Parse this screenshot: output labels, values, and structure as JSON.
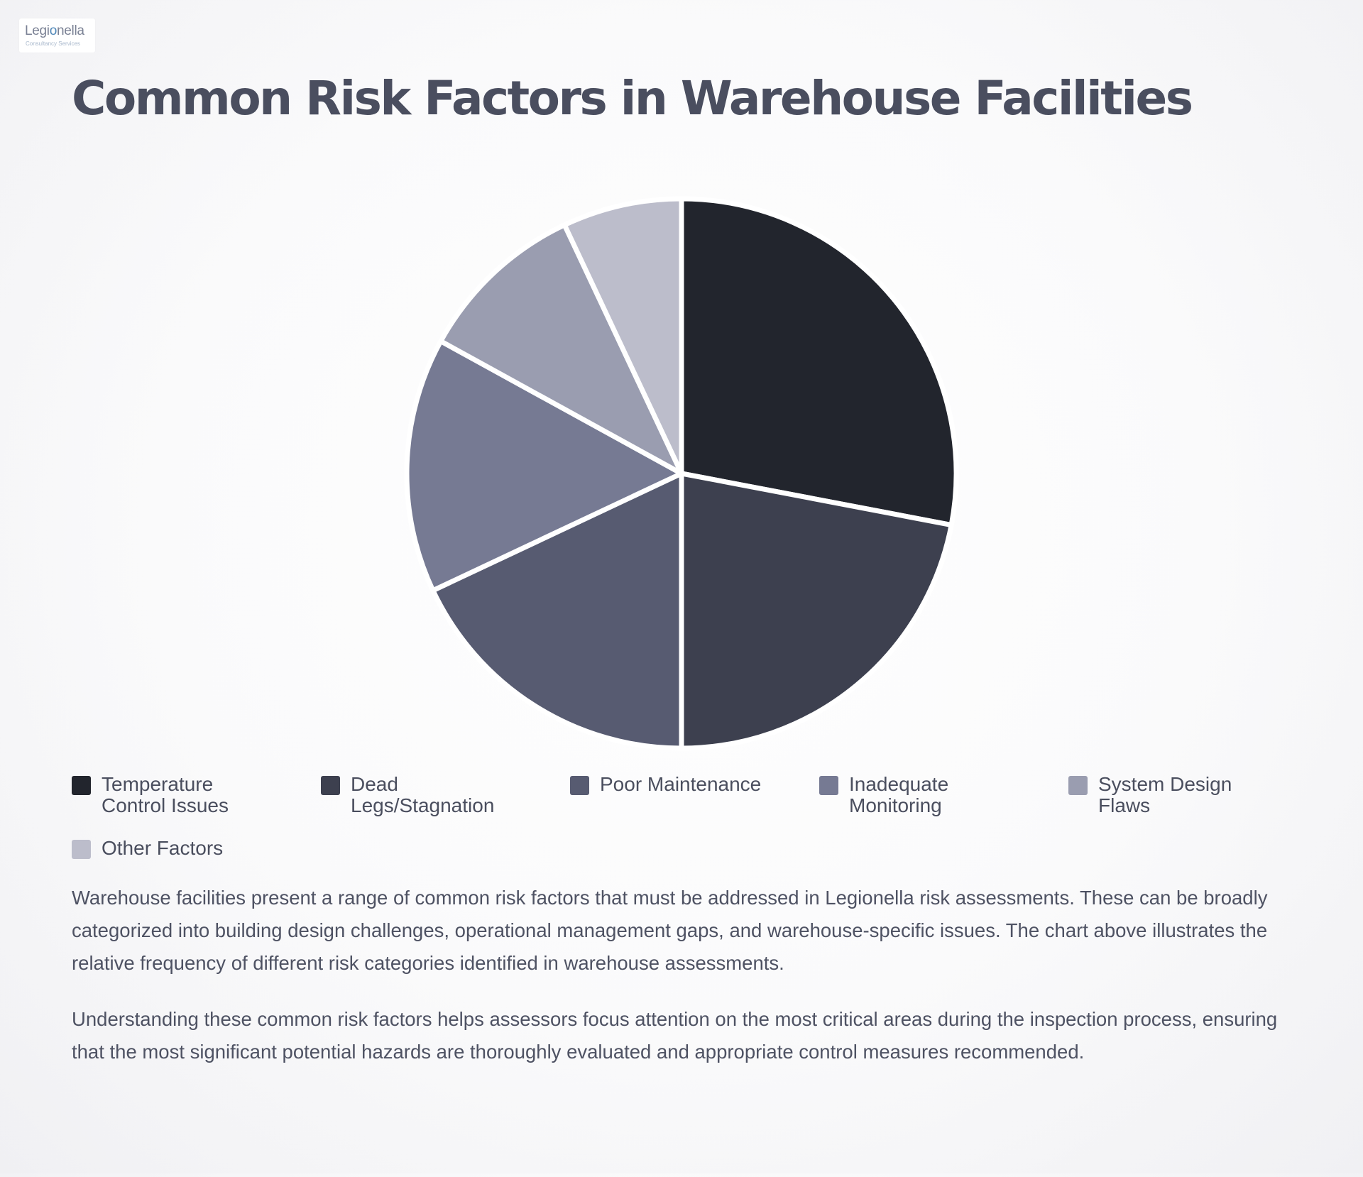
{
  "logo": {
    "word_start": "Legi",
    "word_o": "o",
    "word_end": "nella",
    "tagline": "Consultancy Services",
    "colors": {
      "word": "#7a8194",
      "accent": "#4f87b8",
      "tagline": "#a9b8cc"
    }
  },
  "title": "Common Risk Factors in Warehouse Facilities",
  "chart_data": {
    "type": "pie",
    "title": "Common Risk Factors in Warehouse Facilities",
    "unit": "relative frequency (%)",
    "start_angle": "12 o'clock",
    "direction": "clockwise",
    "legend_position": "bottom",
    "slices": [
      {
        "label": "Temperature Control Issues",
        "value": 28,
        "color": "#22252d"
      },
      {
        "label": "Dead Legs/Stagnation",
        "value": 22,
        "color": "#3d404f"
      },
      {
        "label": "Poor Maintenance",
        "value": 18,
        "color": "#575b71"
      },
      {
        "label": "Inadequate Monitoring",
        "value": 15,
        "color": "#767a93"
      },
      {
        "label": "System Design Flaws",
        "value": 10,
        "color": "#9a9db0"
      },
      {
        "label": "Other Factors",
        "value": 7,
        "color": "#bcbdcb"
      }
    ]
  },
  "paragraphs": [
    "Warehouse facilities present a range of common risk factors that must be addressed in Legionella risk assessments. These can be broadly categorized into building design challenges, operational management gaps, and warehouse-specific issues. The chart above illustrates the relative frequency of different risk categories identified in warehouse assessments.",
    "Understanding these common risk factors helps assessors focus attention on the most critical areas during the inspection process, ensuring that the most significant potential hazards are thoroughly evaluated and appropriate control measures recommended."
  ]
}
